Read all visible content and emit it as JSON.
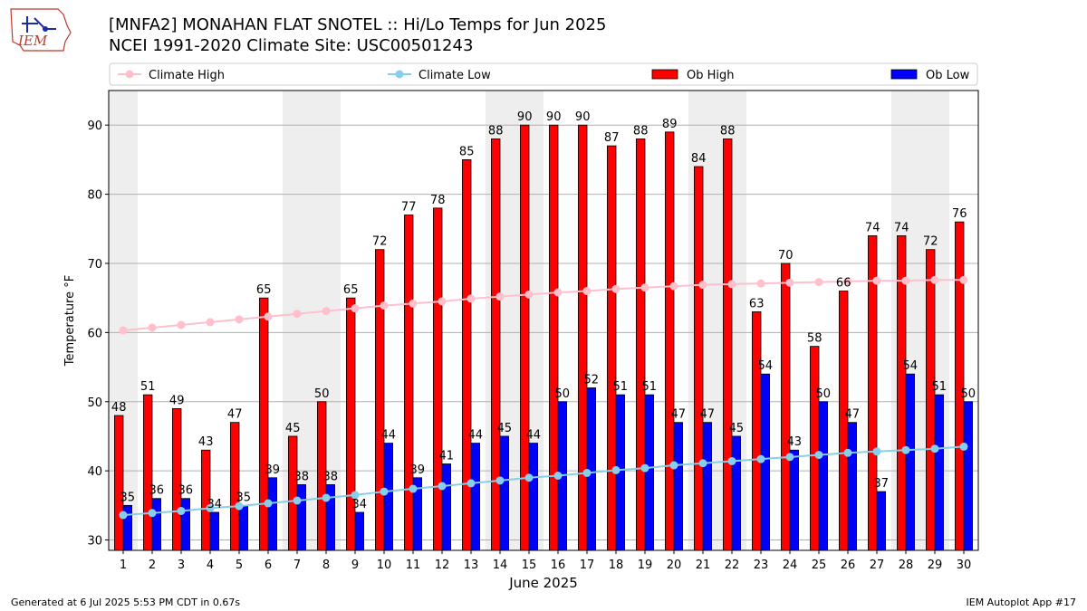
{
  "header": {
    "title": "[MNFA2] MONAHAN FLAT SNOTEL :: Hi/Lo Temps for Jun 2025",
    "subtitle": "NCEI 1991-2020 Climate Site: USC00501243",
    "logo_text": "IEM"
  },
  "footer": {
    "generated": "Generated at 6 Jul 2025 5:53 PM CDT in 0.67s",
    "app": "IEM Autoplot App #17"
  },
  "colors": {
    "ob_high": "#ff0000",
    "ob_low": "#0000ff",
    "climate_high": "#ffc0cb",
    "climate_low": "#87ceeb",
    "weekend_shade": "#eeeeee",
    "grid": "#b0b0b0"
  },
  "chart_data": {
    "type": "bar",
    "xlabel": "June 2025",
    "ylabel": "Temperature °F",
    "ylim": [
      28.5,
      95
    ],
    "yticks": [
      30,
      40,
      50,
      60,
      70,
      80,
      90
    ],
    "grid": "horizontal",
    "legend_position": "top",
    "categories": [
      "1",
      "2",
      "3",
      "4",
      "5",
      "6",
      "7",
      "8",
      "9",
      "10",
      "11",
      "12",
      "13",
      "14",
      "15",
      "16",
      "17",
      "18",
      "19",
      "20",
      "21",
      "22",
      "23",
      "24",
      "25",
      "26",
      "27",
      "28",
      "29",
      "30"
    ],
    "shaded_weekend_days": [
      1,
      7,
      8,
      14,
      15,
      21,
      22,
      28,
      29
    ],
    "series": [
      {
        "name": "Climate High",
        "kind": "line",
        "values": [
          60.3,
          60.7,
          61.1,
          61.5,
          61.9,
          62.3,
          62.7,
          63.1,
          63.5,
          63.9,
          64.2,
          64.5,
          64.9,
          65.2,
          65.5,
          65.8,
          66.0,
          66.3,
          66.5,
          66.7,
          66.9,
          67.0,
          67.1,
          67.2,
          67.3,
          67.4,
          67.5,
          67.5,
          67.6,
          67.6
        ]
      },
      {
        "name": "Climate Low",
        "kind": "line",
        "values": [
          33.6,
          33.9,
          34.2,
          34.6,
          34.9,
          35.3,
          35.7,
          36.1,
          36.5,
          37.0,
          37.4,
          37.8,
          38.2,
          38.6,
          39.0,
          39.3,
          39.7,
          40.1,
          40.4,
          40.8,
          41.1,
          41.4,
          41.7,
          42.0,
          42.3,
          42.6,
          42.8,
          43.0,
          43.2,
          43.5
        ]
      },
      {
        "name": "Ob High",
        "kind": "bar",
        "values": [
          48,
          51,
          49,
          43,
          47,
          65,
          45,
          50,
          65,
          72,
          77,
          78,
          85,
          88,
          90,
          90,
          90,
          87,
          88,
          89,
          84,
          88,
          63,
          70,
          58,
          66,
          74,
          74,
          72,
          76
        ]
      },
      {
        "name": "Ob Low",
        "kind": "bar",
        "values": [
          35,
          36,
          36,
          34,
          35,
          39,
          38,
          38,
          34,
          44,
          39,
          41,
          44,
          45,
          44,
          50,
          52,
          51,
          51,
          47,
          47,
          45,
          54,
          43,
          50,
          47,
          37,
          54,
          51,
          50
        ]
      }
    ]
  }
}
